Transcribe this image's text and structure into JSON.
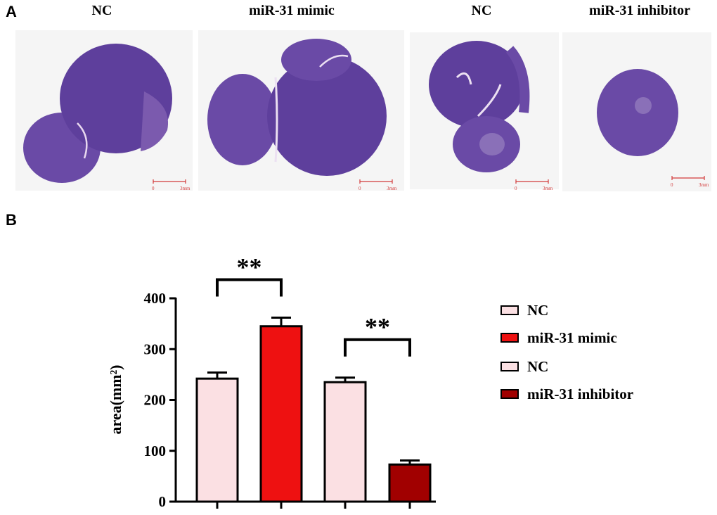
{
  "panel_a": {
    "letter": "A",
    "images": [
      {
        "label": "NC",
        "scale_zero": "0",
        "scale_len": "3mm"
      },
      {
        "label": "miR-31 mimic",
        "scale_zero": "0",
        "scale_len": "3mm"
      },
      {
        "label": "NC",
        "scale_zero": "0",
        "scale_len": "3mm"
      },
      {
        "label": "miR-31 inhibitor",
        "scale_zero": "0",
        "scale_len": "3mm"
      }
    ],
    "tissue_color": "#6a4aa6"
  },
  "panel_b": {
    "letter": "B"
  },
  "chart_data": {
    "type": "bar",
    "categories": [
      "NC",
      "miR-31 mimic",
      "NC",
      "miR-31 inhibitor"
    ],
    "values": [
      242,
      345,
      235,
      73
    ],
    "errors": [
      12,
      17,
      9,
      8
    ],
    "colors": [
      "#fbe0e3",
      "#ee1111",
      "#fbe0e3",
      "#a10000"
    ],
    "ylabel": "area(mm²)",
    "ylim": [
      0,
      400
    ],
    "yticks": [
      0,
      100,
      200,
      300,
      400
    ],
    "grid": false,
    "legend_position": "right",
    "significance": [
      {
        "pair": [
          0,
          1
        ],
        "label": "**"
      },
      {
        "pair": [
          2,
          3
        ],
        "label": "**"
      }
    ]
  }
}
